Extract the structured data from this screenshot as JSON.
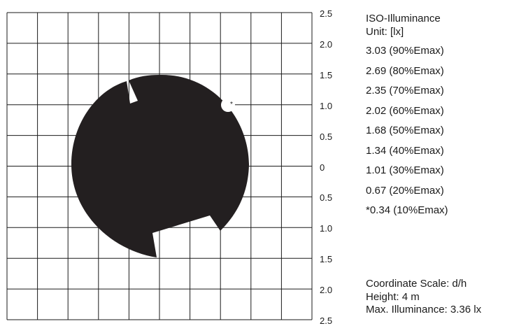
{
  "legend": {
    "title": "ISO-Illuminance",
    "unit": "Unit: [lx]",
    "items": [
      "3.03 (90%Emax)",
      "2.69 (80%Emax)",
      "2.35 (70%Emax)",
      "2.02 (60%Emax)",
      "1.68 (50%Emax)",
      "1.34 (40%Emax)",
      "1.01 (30%Emax)",
      "0.67 (20%Emax)",
      "*0.34 (10%Emax)"
    ]
  },
  "axis": {
    "ticks": [
      "2.5",
      "2.0",
      "1.5",
      "1.0",
      "0.5",
      "0",
      "0.5",
      "1.0",
      "1.5",
      "2.0",
      "2.5"
    ]
  },
  "footer": {
    "scale": "Coordinate Scale: d/h",
    "height": "Height: 4 m",
    "max": "Max. Illuminance: 3.36 lx"
  },
  "marker": "*",
  "colors": {
    "fill": "#231f20",
    "grid": "#1a1a1a",
    "background": "#ffffff"
  }
}
